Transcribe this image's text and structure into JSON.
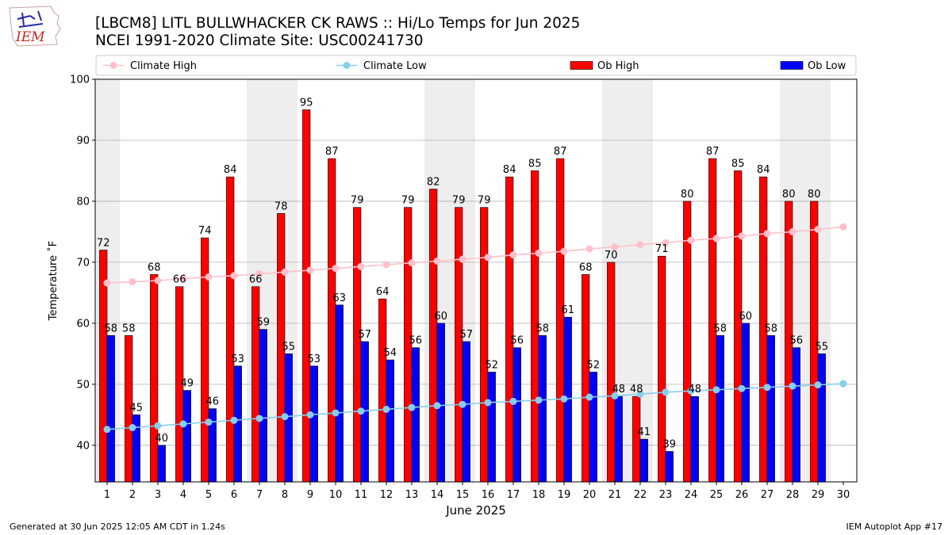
{
  "logo_text": "IEM",
  "footer": {
    "generated": "Generated at 30 Jun 2025 12:05 AM CDT in 1.24s",
    "app": "IEM Autoplot App #17"
  },
  "colors": {
    "ob_high": "#ff0000",
    "ob_low": "#0000ff",
    "climate_high": "#ffc0cb",
    "climate_low": "#87ceeb",
    "weekend_band": "#eeeeee",
    "grid": "#b0b0b0"
  },
  "chart_data": {
    "type": "bar",
    "title": "[LBCM8] LITL BULLWHACKER CK RAWS :: Hi/Lo Temps for Jun 2025",
    "subtitle": "NCEI 1991-2020 Climate Site: USC00241730",
    "xlabel": "June 2025",
    "ylabel": "Temperature ˚F",
    "ylim": [
      34,
      100
    ],
    "yticks": [
      40,
      50,
      60,
      70,
      80,
      90,
      100
    ],
    "grid": "y",
    "legend_position": "top",
    "categories": [
      "1",
      "2",
      "3",
      "4",
      "5",
      "6",
      "7",
      "8",
      "9",
      "10",
      "11",
      "12",
      "13",
      "14",
      "15",
      "16",
      "17",
      "18",
      "19",
      "20",
      "21",
      "22",
      "23",
      "24",
      "25",
      "26",
      "27",
      "28",
      "29",
      "30"
    ],
    "shaded_days": [
      1,
      7,
      8,
      14,
      15,
      21,
      22,
      28,
      29
    ],
    "series": [
      {
        "name": "Ob High",
        "kind": "bar",
        "values": [
          72,
          58,
          68,
          66,
          74,
          84,
          66,
          78,
          95,
          87,
          79,
          64,
          79,
          82,
          79,
          79,
          84,
          85,
          87,
          68,
          70,
          48,
          71,
          80,
          87,
          85,
          84,
          80,
          80,
          null
        ]
      },
      {
        "name": "Ob Low",
        "kind": "bar",
        "values": [
          58,
          45,
          40,
          49,
          46,
          53,
          59,
          55,
          53,
          63,
          57,
          54,
          56,
          60,
          57,
          52,
          56,
          58,
          61,
          52,
          48,
          41,
          39,
          48,
          58,
          60,
          58,
          56,
          55,
          null
        ]
      },
      {
        "name": "Climate High",
        "kind": "line",
        "values": [
          66.6,
          66.8,
          67.0,
          67.3,
          67.6,
          67.8,
          68.1,
          68.4,
          68.7,
          69.0,
          69.3,
          69.6,
          69.9,
          70.2,
          70.5,
          70.8,
          71.2,
          71.5,
          71.8,
          72.2,
          72.5,
          72.9,
          73.2,
          73.6,
          73.9,
          74.3,
          74.7,
          75.0,
          75.4,
          75.8
        ]
      },
      {
        "name": "Climate Low",
        "kind": "line",
        "values": [
          42.6,
          42.9,
          43.2,
          43.5,
          43.8,
          44.1,
          44.4,
          44.7,
          45.0,
          45.3,
          45.6,
          45.9,
          46.2,
          46.5,
          46.7,
          47.0,
          47.2,
          47.4,
          47.6,
          47.9,
          48.1,
          48.4,
          48.7,
          48.9,
          49.1,
          49.3,
          49.5,
          49.7,
          49.9,
          50.1
        ]
      }
    ]
  }
}
